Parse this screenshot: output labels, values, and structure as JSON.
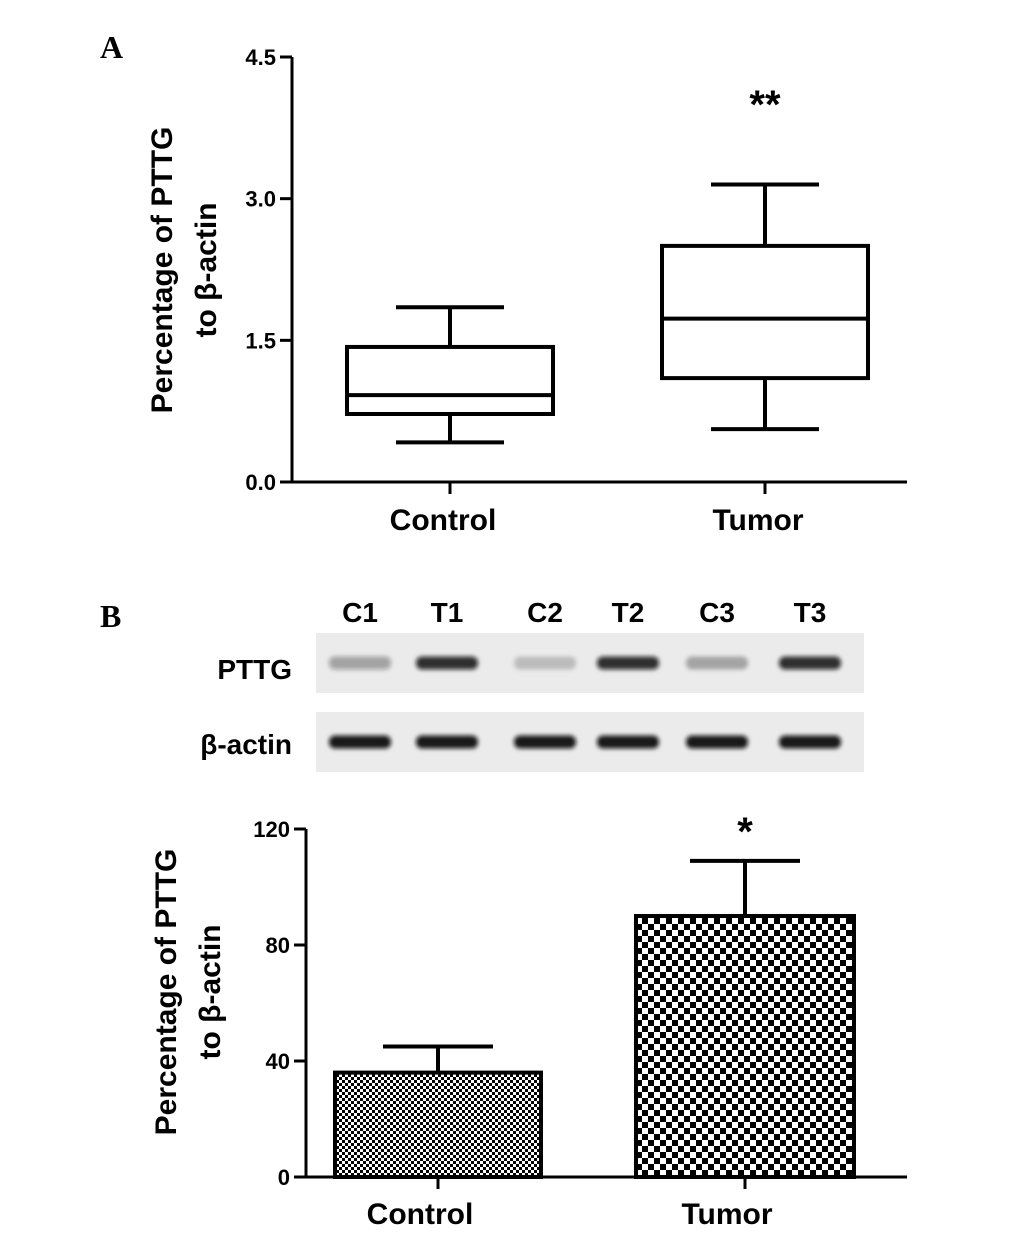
{
  "panels": {
    "a": {
      "label": "A"
    },
    "b": {
      "label": "B"
    }
  },
  "chart_data": [
    {
      "type": "boxplot",
      "panel": "A",
      "categories": [
        "Control",
        "Tumor"
      ],
      "ylabel_line1": "Percentage of PTTG",
      "ylabel_line2": "to β-actin",
      "ylim": [
        0,
        4.5
      ],
      "yticks": [
        0.0,
        1.5,
        3.0,
        4.5
      ],
      "ytick_labels": [
        "0.0",
        "1.5",
        "3.0",
        "4.5"
      ],
      "boxes": [
        {
          "name": "Control",
          "min": 0.42,
          "q1": 0.72,
          "median": 0.92,
          "q3": 1.43,
          "max": 1.85
        },
        {
          "name": "Tumor",
          "min": 0.56,
          "q1": 1.1,
          "median": 1.73,
          "q3": 2.5,
          "max": 3.15
        }
      ],
      "annotations": [
        {
          "category": "Tumor",
          "text": "**"
        }
      ]
    },
    {
      "type": "bar",
      "panel": "B",
      "categories": [
        "Control",
        "Tumor"
      ],
      "values": [
        36,
        90
      ],
      "errors": [
        9,
        19
      ],
      "ylabel_line1": "Percentage of PTTG",
      "ylabel_line2": "to β-actin",
      "ylim": [
        0,
        120
      ],
      "yticks": [
        0,
        40,
        80,
        120
      ],
      "ytick_labels": [
        "0",
        "40",
        "80",
        "120"
      ],
      "annotations": [
        {
          "category": "Tumor",
          "text": "*"
        }
      ]
    }
  ],
  "blot": {
    "lanes": [
      "C1",
      "T1",
      "C2",
      "T2",
      "C3",
      "T3"
    ],
    "rows": [
      {
        "label": "PTTG",
        "intensities": [
          0.35,
          0.85,
          0.2,
          0.85,
          0.3,
          0.85
        ]
      },
      {
        "label": "β-actin",
        "intensities": [
          0.95,
          0.95,
          0.95,
          0.95,
          0.95,
          0.95
        ]
      }
    ]
  },
  "colors": {
    "ink": "#000000",
    "background": "#ffffff",
    "blot_bg": "#ebebeb"
  }
}
